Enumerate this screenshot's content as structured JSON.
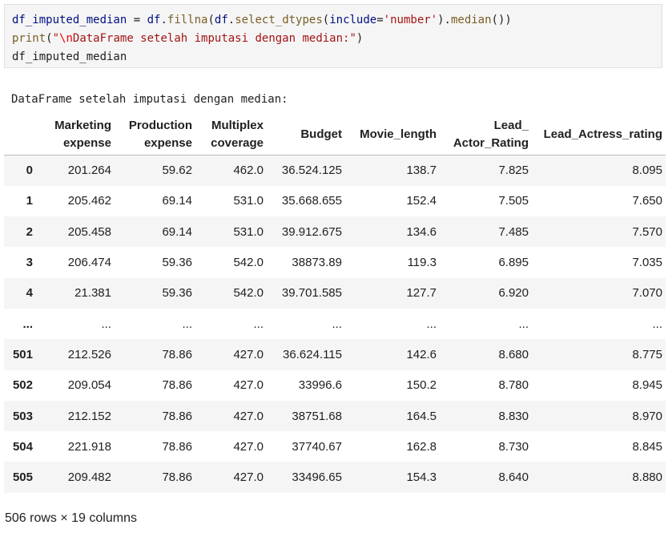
{
  "code": {
    "line1": {
      "var": "df_imputed_median",
      "eq": " = ",
      "obj": "df",
      "dot1": ".",
      "fn1": "fillna",
      "p1": "(",
      "obj2": "df",
      "dot2": ".",
      "fn2": "select_dtypes",
      "p2": "(",
      "kw": "include",
      "eq2": "=",
      "str": "'number'",
      "p3": ").",
      "fn3": "median",
      "p4": "())"
    },
    "line2": {
      "fn": "print",
      "p1": "(",
      "q1": "\"",
      "esc": "\\n",
      "str": "DataFrame setelah imputasi dengan median:",
      "q2": "\"",
      "p2": ")"
    },
    "line3": "df_imputed_median"
  },
  "output_text": "DataFrame setelah imputasi dengan median:",
  "table": {
    "headers": [
      {
        "line1": "Marketing",
        "line2": "expense"
      },
      {
        "line1": "Production",
        "line2": "expense"
      },
      {
        "line1": "Multiplex",
        "line2": "coverage"
      },
      {
        "line1": "Budget",
        "line2": ""
      },
      {
        "line1": "Movie_length",
        "line2": ""
      },
      {
        "line1": "Lead_",
        "line2": "Actor_Rating"
      },
      {
        "line1": "Lead_Actress_rating",
        "line2": ""
      }
    ],
    "rows": [
      {
        "index": "0",
        "cells": [
          "201.264",
          "59.62",
          "462.0",
          "36.524.125",
          "138.7",
          "7.825",
          "8.095"
        ]
      },
      {
        "index": "1",
        "cells": [
          "205.462",
          "69.14",
          "531.0",
          "35.668.655",
          "152.4",
          "7.505",
          "7.650"
        ]
      },
      {
        "index": "2",
        "cells": [
          "205.458",
          "69.14",
          "531.0",
          "39.912.675",
          "134.6",
          "7.485",
          "7.570"
        ]
      },
      {
        "index": "3",
        "cells": [
          "206.474",
          "59.36",
          "542.0",
          "38873.89",
          "119.3",
          "6.895",
          "7.035"
        ]
      },
      {
        "index": "4",
        "cells": [
          "21.381",
          "59.36",
          "542.0",
          "39.701.585",
          "127.7",
          "6.920",
          "7.070"
        ]
      },
      {
        "index": "...",
        "cells": [
          "...",
          "...",
          "...",
          "...",
          "...",
          "...",
          "..."
        ]
      },
      {
        "index": "501",
        "cells": [
          "212.526",
          "78.86",
          "427.0",
          "36.624.115",
          "142.6",
          "8.680",
          "8.775"
        ]
      },
      {
        "index": "502",
        "cells": [
          "209.054",
          "78.86",
          "427.0",
          "33996.6",
          "150.2",
          "8.780",
          "8.945"
        ]
      },
      {
        "index": "503",
        "cells": [
          "212.152",
          "78.86",
          "427.0",
          "38751.68",
          "164.5",
          "8.830",
          "8.970"
        ]
      },
      {
        "index": "504",
        "cells": [
          "221.918",
          "78.86",
          "427.0",
          "37740.67",
          "162.8",
          "8.730",
          "8.845"
        ]
      },
      {
        "index": "505",
        "cells": [
          "209.482",
          "78.86",
          "427.0",
          "33496.65",
          "154.3",
          "8.640",
          "8.880"
        ]
      }
    ]
  },
  "footer": "506 rows × 19 columns"
}
